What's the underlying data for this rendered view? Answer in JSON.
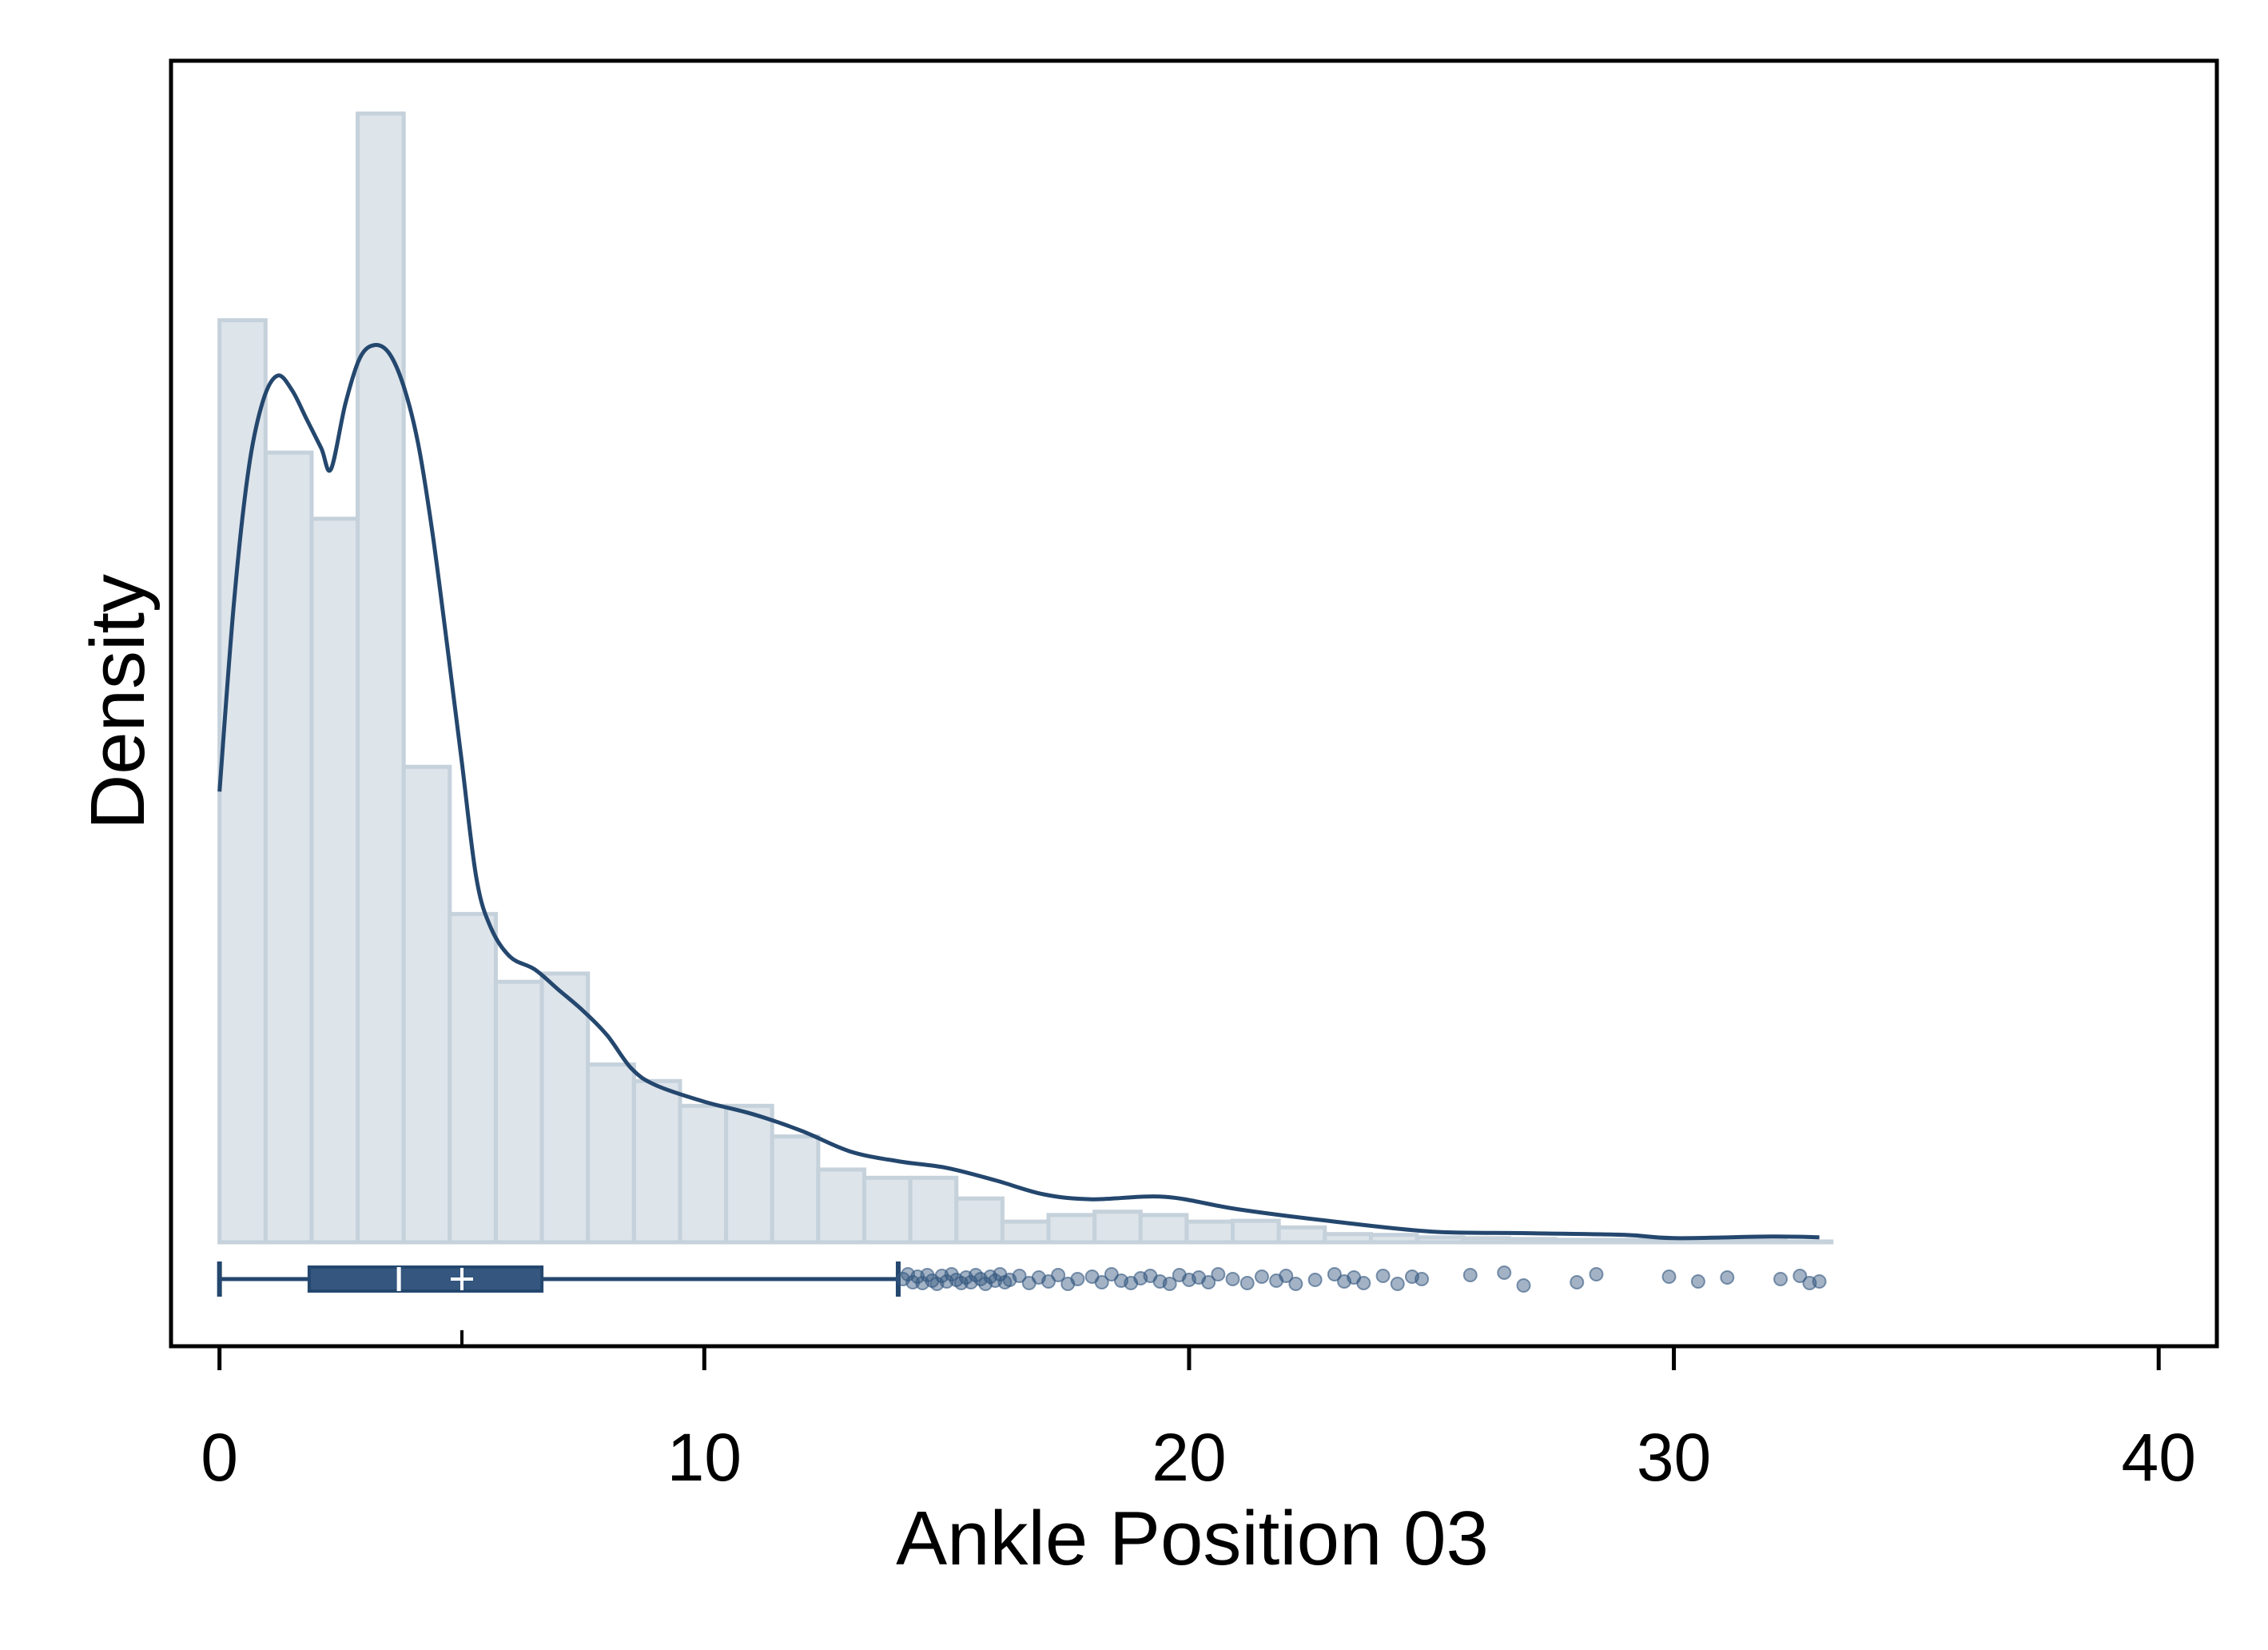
{
  "chart_data": {
    "type": "histogram",
    "title": "",
    "xlabel": "Ankle Position 03",
    "ylabel": "Density",
    "xlim": [
      -1,
      41.2
    ],
    "xticks": [
      0,
      10,
      20,
      30,
      40
    ],
    "xtick_labels": [
      "0",
      "10",
      "20",
      "30",
      "40"
    ],
    "yticks_shown": false,
    "grid": false,
    "legend": "none",
    "histogram": {
      "bin_width": 0.95,
      "bin_start": 0,
      "densities": [
        0.1115,
        0.0955,
        0.0875,
        0.1365,
        0.0575,
        0.0397,
        0.0315,
        0.0325,
        0.0215,
        0.0195,
        0.0165,
        0.0165,
        0.0128,
        0.0088,
        0.0078,
        0.0078,
        0.0053,
        0.0025,
        0.0033,
        0.0037,
        0.0033,
        0.0025,
        0.0026,
        0.0018,
        0.001,
        0.0009,
        0.0006,
        0.0005,
        0.0004,
        0.0003,
        0.0003,
        0.0002,
        0.0002,
        0.0002,
        0.0001
      ]
    },
    "density_curve": {
      "x": [
        0,
        0.3,
        0.6,
        0.9,
        1.2,
        1.5,
        1.8,
        2.1,
        2.3,
        2.6,
        2.9,
        3.2,
        3.5,
        3.8,
        4.1,
        4.4,
        4.7,
        5.0,
        5.3,
        5.6,
        6.0,
        6.5,
        7.0,
        7.5,
        8.0,
        8.5,
        9.0,
        10.0,
        11.0,
        12.0,
        13.0,
        14.0,
        15.0,
        16.0,
        17.0,
        18.0,
        19.5,
        21.0,
        23.0,
        25.0,
        27.0,
        29.0,
        30.0,
        32.0,
        33.0
      ],
      "y": [
        0.0545,
        0.0775,
        0.0935,
        0.1018,
        0.1048,
        0.103,
        0.0995,
        0.096,
        0.0935,
        0.1015,
        0.107,
        0.1085,
        0.1075,
        0.1035,
        0.0965,
        0.0855,
        0.072,
        0.058,
        0.044,
        0.038,
        0.0345,
        0.033,
        0.0305,
        0.028,
        0.025,
        0.021,
        0.019,
        0.017,
        0.0155,
        0.0135,
        0.011,
        0.0098,
        0.009,
        0.0075,
        0.0058,
        0.0052,
        0.0055,
        0.004,
        0.0025,
        0.0013,
        0.0011,
        0.0009,
        0.0005,
        0.0007,
        0.0006
      ]
    },
    "boxplot": {
      "min": 0,
      "q1": 1.85,
      "median": 3.7,
      "mean": 5.0,
      "q3": 6.65,
      "whisker_high": 14.0,
      "outliers": [
        14.1,
        14.2,
        14.3,
        14.4,
        14.5,
        14.6,
        14.7,
        14.8,
        14.9,
        15.0,
        15.1,
        15.2,
        15.3,
        15.4,
        15.5,
        15.6,
        15.7,
        15.8,
        15.9,
        16.0,
        16.1,
        16.2,
        16.3,
        16.5,
        16.7,
        16.9,
        17.1,
        17.3,
        17.5,
        17.7,
        18.0,
        18.2,
        18.4,
        18.6,
        18.8,
        19.0,
        19.2,
        19.4,
        19.6,
        19.8,
        20.0,
        20.2,
        20.4,
        20.6,
        20.9,
        21.2,
        21.5,
        21.8,
        22.0,
        22.2,
        22.6,
        23.0,
        23.2,
        23.4,
        23.6,
        24.0,
        24.3,
        24.6,
        24.8,
        25.8,
        26.5,
        26.9,
        28.0,
        28.4,
        29.9,
        30.5,
        31.1,
        32.2,
        32.6,
        32.8,
        33.0
      ],
      "outlier_offsets": [
        0,
        -6,
        4,
        -3,
        5,
        -5,
        2,
        6,
        -4,
        3,
        -6,
        1,
        5,
        -2,
        4,
        -5,
        0,
        6,
        -3,
        2,
        -6,
        4,
        1,
        -4,
        5,
        -2,
        3,
        -5,
        6,
        0,
        -3,
        4,
        -6,
        2,
        5,
        -1,
        -4,
        3,
        6,
        -5,
        1,
        -2,
        4,
        -6,
        0,
        5,
        -3,
        2,
        -4,
        6,
        1,
        -6,
        3,
        -2,
        5,
        -4,
        6,
        -3,
        0,
        -5,
        -8,
        8,
        4,
        -6,
        -3,
        3,
        -2,
        0,
        -4,
        5,
        3
      ]
    },
    "colors": {
      "line": "#24476e",
      "bar_fill": "#dde4ea",
      "bar_edge": "#c5d1db",
      "box_fill": "#34567f",
      "outlier": "#34567f",
      "frame": "#000000"
    }
  }
}
